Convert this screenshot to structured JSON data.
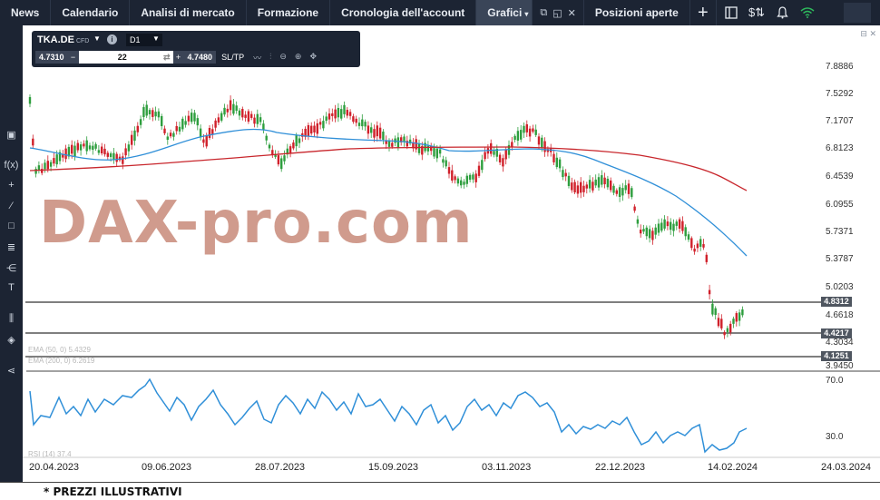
{
  "nav": {
    "tabs": [
      {
        "label": "News"
      },
      {
        "label": "Calendario"
      },
      {
        "label": "Analisi di mercato"
      },
      {
        "label": "Formazione"
      },
      {
        "label": "Cronologia dell'account"
      },
      {
        "label": "Grafici"
      },
      {
        "label": "Posizioni aperte"
      }
    ],
    "active_tab": "Grafici",
    "right_icons": [
      "layout-icon",
      "price-alert-icon",
      "bell-icon",
      "wifi-icon"
    ]
  },
  "toolbar": {
    "symbol": "TKA.DE",
    "symbol_type": "CFD",
    "timeframe": "D1",
    "sell_price": "4.7310",
    "buy_price": "4.7480",
    "quantity": "22",
    "minus": "−",
    "plus": "+",
    "sltp_label": "SL/TP"
  },
  "price_axis": [
    "7.8886",
    "7.5292",
    "7.1707",
    "6.8123",
    "6.4539",
    "6.0955",
    "5.7371",
    "5.3787",
    "5.0203",
    "4.6618",
    "4.3034",
    "3.9450"
  ],
  "price_levels": [
    {
      "value": "4.8312"
    },
    {
      "value": "4.4217"
    },
    {
      "value": "4.1251"
    }
  ],
  "indicators": {
    "ema50": "EMA (50, 0) 5.4329",
    "ema200": "EMA (200, 0) 6.2619",
    "rsi": "RSI (14) 37.4",
    "rsi_axis": [
      "70.0",
      "30.0"
    ]
  },
  "x_axis": [
    "20.04.2023",
    "09.06.2023",
    "28.07.2023",
    "15.09.2023",
    "03.11.2023",
    "22.12.2023",
    "14.02.2024",
    "24.03.2024"
  ],
  "watermark": "DAX-pro.com",
  "footer": "* PREZZI ILLUSTRATIVI",
  "colors": {
    "up": "#2e9e3e",
    "down": "#d0202a",
    "ema50": "#2f8fd8",
    "ema200": "#c8262c",
    "rsi": "#2f8fd8",
    "nav_bg": "#1c2433"
  }
}
